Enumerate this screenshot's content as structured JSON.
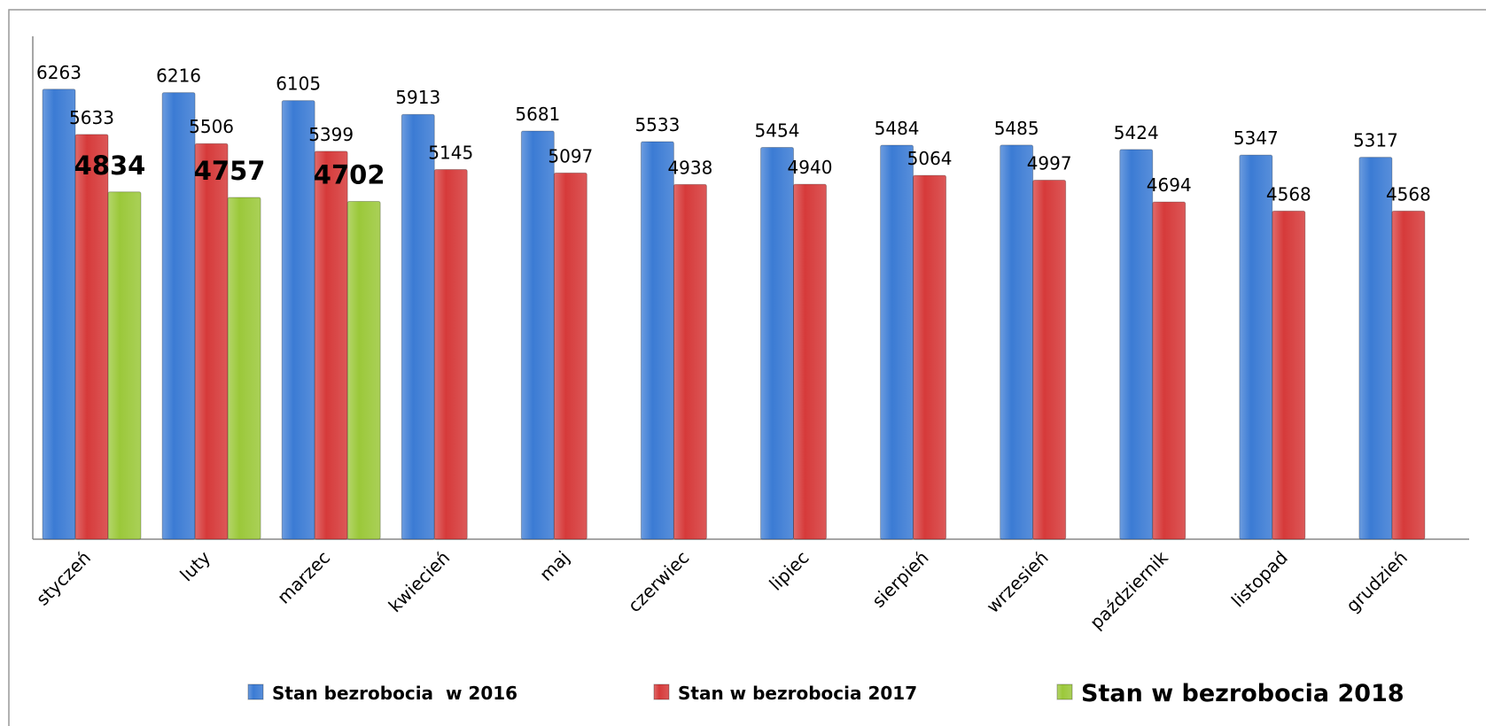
{
  "chart_data": {
    "type": "bar",
    "categories": [
      "styczeń",
      "luty",
      "marzec",
      "kwiecień",
      "maj",
      "czerwiec",
      "lipiec",
      "sierpień",
      "wrzesień",
      "październik",
      "listopad",
      "grudzień"
    ],
    "series": [
      {
        "name": "Stan bezrobocia  w 2016",
        "color": "#3b7bd4",
        "values": [
          6263,
          6216,
          6105,
          5913,
          5681,
          5533,
          5454,
          5484,
          5485,
          5424,
          5347,
          5317
        ]
      },
      {
        "name": "Stan w bezrobocia 2017",
        "color": "#d63a3a",
        "values": [
          5633,
          5506,
          5399,
          5145,
          5097,
          4938,
          4940,
          5064,
          4997,
          4694,
          4568,
          4568
        ]
      },
      {
        "name": "Stan w bezrobocia 2018",
        "color": "#9bc83a",
        "values": [
          4834,
          4757,
          4702,
          null,
          null,
          null,
          null,
          null,
          null,
          null,
          null,
          null
        ]
      }
    ],
    "ylim": [
      0,
      7000
    ],
    "legend": "bottom"
  }
}
